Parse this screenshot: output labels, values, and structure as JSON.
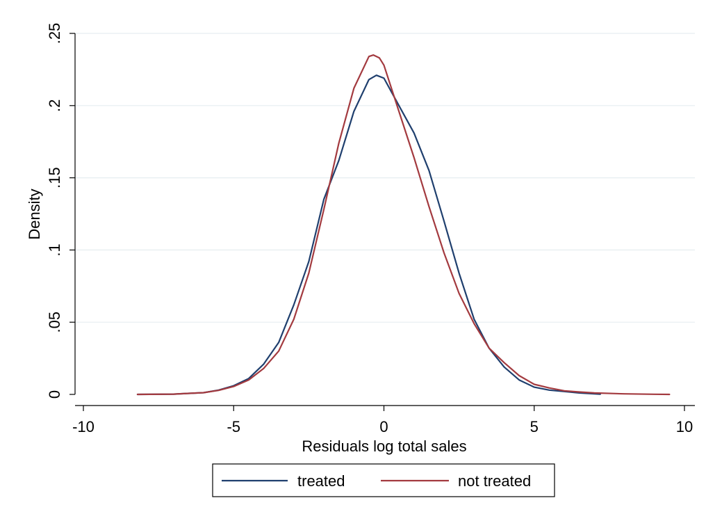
{
  "chart_data": {
    "type": "line",
    "title": "",
    "xlabel": "Residuals log total sales",
    "ylabel": "Density",
    "xlim": [
      -10,
      10
    ],
    "ylim": [
      0,
      0.25
    ],
    "xticks": [
      -10,
      -5,
      0,
      5,
      10
    ],
    "xtick_labels": [
      "-10",
      "-5",
      "0",
      "5",
      "10"
    ],
    "yticks": [
      0,
      0.05,
      0.1,
      0.15,
      0.2,
      0.25
    ],
    "ytick_labels": [
      "0",
      ".05",
      ".1",
      ".15",
      ".2",
      ".25"
    ],
    "grid": true,
    "legend_position": "bottom",
    "series": [
      {
        "name": "treated",
        "color": "#1f3f6e",
        "x": [
          -8.2,
          -7,
          -6,
          -5.5,
          -5,
          -4.5,
          -4,
          -3.5,
          -3,
          -2.5,
          -2,
          -1.5,
          -1,
          -0.5,
          -0.25,
          0,
          0.5,
          1,
          1.5,
          2,
          2.5,
          3,
          3.5,
          4,
          4.5,
          5,
          5.5,
          6,
          6.5,
          7,
          7.2
        ],
        "y": [
          0,
          0.0002,
          0.0012,
          0.003,
          0.006,
          0.011,
          0.021,
          0.036,
          0.062,
          0.092,
          0.135,
          0.162,
          0.196,
          0.218,
          0.221,
          0.219,
          0.2,
          0.181,
          0.155,
          0.12,
          0.084,
          0.052,
          0.032,
          0.019,
          0.01,
          0.005,
          0.003,
          0.002,
          0.001,
          0.0004,
          0.0002
        ]
      },
      {
        "name": "not treated",
        "color": "#a33a3f",
        "x": [
          -8.2,
          -7,
          -6,
          -5.5,
          -5,
          -4.5,
          -4,
          -3.5,
          -3,
          -2.5,
          -2,
          -1.5,
          -1,
          -0.5,
          -0.35,
          -0.15,
          0,
          0.5,
          1,
          1.5,
          2,
          2.5,
          3,
          3.5,
          4,
          4.5,
          5,
          5.5,
          6,
          6.5,
          7,
          8,
          9,
          9.5
        ],
        "y": [
          0,
          0.0002,
          0.0012,
          0.0028,
          0.0055,
          0.01,
          0.018,
          0.03,
          0.052,
          0.084,
          0.128,
          0.174,
          0.212,
          0.234,
          0.235,
          0.233,
          0.228,
          0.196,
          0.164,
          0.13,
          0.098,
          0.07,
          0.049,
          0.032,
          0.022,
          0.013,
          0.007,
          0.0045,
          0.0025,
          0.0017,
          0.001,
          0.0004,
          0.0001,
          0
        ]
      }
    ]
  }
}
